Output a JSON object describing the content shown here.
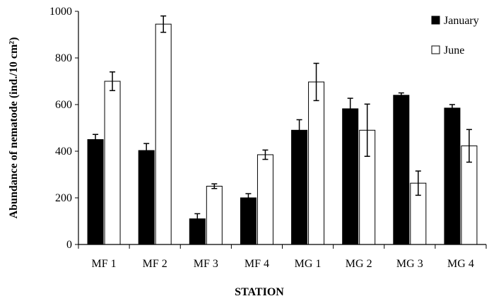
{
  "chart_data": {
    "type": "bar",
    "title": "",
    "xlabel": "STATION",
    "ylabel": "Abundance of nematode (ind./10 cm²)",
    "categories": [
      "MF 1",
      "MF 2",
      "MF 3",
      "MF 4",
      "MG 1",
      "MG 2",
      "MG 3",
      "MG 4"
    ],
    "ylim": [
      0,
      1000
    ],
    "yticks": [
      "0",
      "200",
      "400",
      "600",
      "800",
      "1000"
    ],
    "grid": false,
    "legend_position": "top-right",
    "series": [
      {
        "name": "January",
        "color": "#000000",
        "values": [
          450,
          403,
          110,
          200,
          490,
          582,
          640,
          585
        ],
        "errors": [
          22,
          30,
          22,
          18,
          45,
          45,
          10,
          15
        ]
      },
      {
        "name": "June",
        "color": "#ffffff",
        "values": [
          700,
          945,
          250,
          385,
          697,
          490,
          263,
          423
        ],
        "errors": [
          40,
          35,
          10,
          20,
          80,
          112,
          52,
          70
        ]
      }
    ]
  }
}
